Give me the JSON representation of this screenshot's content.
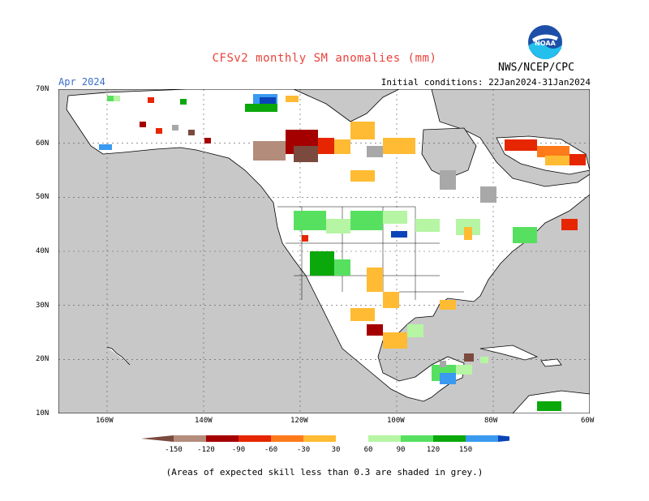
{
  "header": {
    "title": "CFSv2 monthly SM anomalies (mm)",
    "period": "Apr 2024",
    "initial_conditions": "Initial conditions: 22Jan2024-31Jan2024",
    "agency": "NWS/NCEP/CPC",
    "logo_text": "NOAA"
  },
  "axes": {
    "lat_labels": [
      "70N",
      "60N",
      "50N",
      "40N",
      "30N",
      "20N",
      "10N"
    ],
    "lon_labels": [
      "160W",
      "140W",
      "120W",
      "100W",
      "80W",
      "60W"
    ]
  },
  "legend": {
    "ticks": [
      "-150",
      "-120",
      "-90",
      "-60",
      "-30",
      "30",
      "60",
      "90",
      "120",
      "150"
    ],
    "colors": [
      "#7b4a3e",
      "#b48c7c",
      "#a50000",
      "#e62600",
      "#ff7a1a",
      "#ffbb33",
      "#ffffff",
      "#b6f5a3",
      "#57e060",
      "#0ba80b",
      "#3a9af0",
      "#0a44b8"
    ]
  },
  "footer": {
    "note": "(Areas of expected skill less than 0.3 are shaded in grey.)"
  },
  "map_colors": {
    "ocean": "#c8c8c8",
    "land": "#ffffff",
    "low_skill": "#a8a8a8"
  }
}
